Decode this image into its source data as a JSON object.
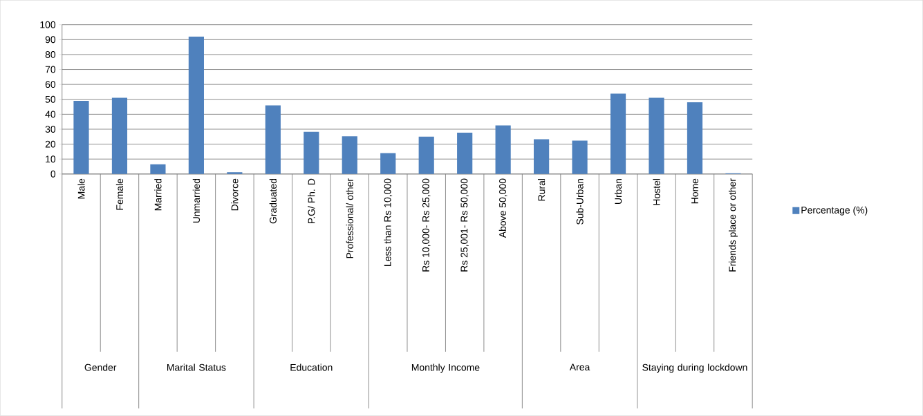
{
  "chart_data": {
    "type": "bar",
    "categories": [
      "Male",
      "Female",
      "Married",
      "Unmarried",
      "Divorce",
      "Graduated",
      "P.G/ Ph. D",
      "Professional/ other",
      "Less than Rs 10,000",
      "Rs 10,000- Rs 25,000",
      "Rs 25,001- Rs 50,000",
      "Above 50,000",
      "Rural",
      "Sub-Urban",
      "Urban",
      "Hostel",
      "Home",
      "Friends place or other"
    ],
    "series": [
      {
        "name": "Percentage (%)",
        "color": "#4f81bd",
        "values": [
          49,
          51,
          6.5,
          92,
          1.2,
          46,
          28.2,
          25.3,
          14,
          25,
          27.7,
          32.5,
          23.3,
          22.3,
          53.8,
          51,
          48,
          0.5
        ]
      }
    ],
    "ylim": [
      0,
      100
    ],
    "yticks": [
      0,
      10,
      20,
      30,
      40,
      50,
      60,
      70,
      80,
      90,
      100
    ],
    "grid": "y",
    "legend": "right",
    "annotations": [
      "Gender",
      "Marital Status",
      "Education",
      "Monthly Income",
      "Area",
      "Staying during lockdown"
    ]
  }
}
